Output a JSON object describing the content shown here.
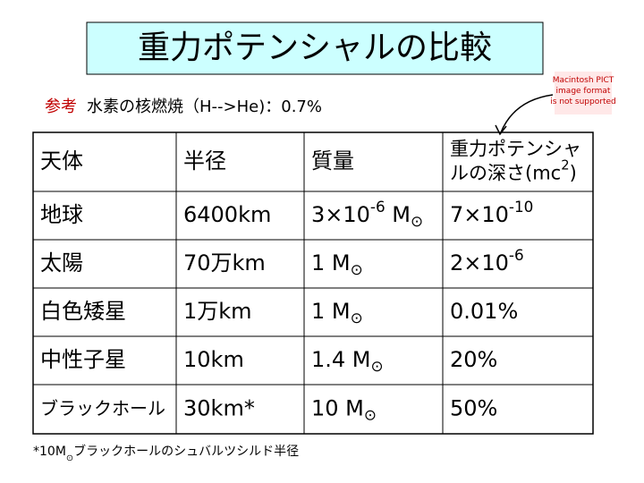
{
  "header": {
    "title": "重力ポテンシャルの比較",
    "note_label": "参考",
    "note_text": "水素の核燃焼（H-->He)：0.7%"
  },
  "placeholder": [
    "Macintosh PICT",
    "image format",
    "is not supported"
  ],
  "table": {
    "header": [
      [
        [
          {
            "text": "天体"
          }
        ]
      ],
      [
        [
          {
            "text": "半径"
          }
        ]
      ],
      [
        [
          {
            "text": "質量"
          }
        ]
      ],
      [
        [
          {
            "text": "重力ポテンシャ"
          }
        ],
        [
          {
            "text": "ルの深さ(mc"
          },
          {
            "sup": "2"
          },
          {
            "text": ")"
          }
        ]
      ]
    ],
    "rows": [
      [
        [
          [
            {
              "text": "地球"
            }
          ]
        ],
        [
          [
            {
              "text": "6400km"
            }
          ]
        ],
        [
          [
            {
              "text": "3×10"
            },
            {
              "sup": "-6"
            },
            {
              "text": " M"
            },
            {
              "sub": "⊙"
            }
          ]
        ],
        [
          [
            {
              "text": "7×10"
            },
            {
              "sup": "-10"
            }
          ]
        ]
      ],
      [
        [
          [
            {
              "text": "太陽"
            }
          ]
        ],
        [
          [
            {
              "text": "70万km"
            }
          ]
        ],
        [
          [
            {
              "text": "1 M"
            },
            {
              "sub": "⊙"
            }
          ]
        ],
        [
          [
            {
              "text": "2×10"
            },
            {
              "sup": "-6"
            }
          ]
        ]
      ],
      [
        [
          [
            {
              "text": "白色矮星"
            }
          ]
        ],
        [
          [
            {
              "text": "1万km"
            }
          ]
        ],
        [
          [
            {
              "text": "1 M"
            },
            {
              "sub": "⊙"
            }
          ]
        ],
        [
          [
            {
              "text": "0.01%"
            }
          ]
        ]
      ],
      [
        [
          [
            {
              "text": "中性子星"
            }
          ]
        ],
        [
          [
            {
              "text": "10km"
            }
          ]
        ],
        [
          [
            {
              "text": "1.4 M"
            },
            {
              "sub": "⊙"
            }
          ]
        ],
        [
          [
            {
              "text": "20%"
            }
          ]
        ]
      ],
      [
        [
          [
            {
              "text": "ブラックホール"
            }
          ]
        ],
        [
          [
            {
              "text": "30km*"
            }
          ]
        ],
        [
          [
            {
              "text": "10 M"
            },
            {
              "sub": "⊙"
            }
          ]
        ],
        [
          [
            {
              "text": "50%"
            }
          ]
        ]
      ]
    ]
  },
  "footnote": [
    {
      "text": "*10M"
    },
    {
      "sub": "⊙"
    },
    {
      "text": "ブラックホールのシュバルツシルド半径"
    }
  ]
}
